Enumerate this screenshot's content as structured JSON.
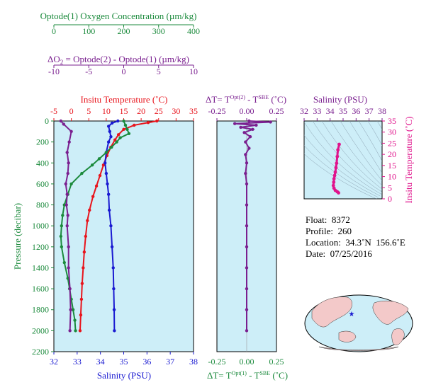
{
  "axes": {
    "oxygen": {
      "label": "Optode(1) Oxygen Concentration (µm/kg)",
      "ticks": [
        "0",
        "100",
        "200",
        "300",
        "400"
      ],
      "color": "#1b8a3c"
    },
    "delta_o2": {
      "label_prefix": "ΔO",
      "label_sub": "2",
      "label_rest": " = Optode(2) - Optode(1)    (µm/kg)",
      "ticks": [
        "-10",
        "-5",
        "0",
        "5",
        "10"
      ],
      "color": "#7a1f8f"
    },
    "temperature": {
      "label": "Insitu Temperature (˚C)",
      "ticks": [
        "-5",
        "0",
        "5",
        "10",
        "15",
        "20",
        "25",
        "30",
        "35"
      ],
      "color": "#e8141c"
    },
    "salinity": {
      "label": "Salinity (PSU)",
      "ticks": [
        "32",
        "33",
        "34",
        "35",
        "36",
        "37",
        "38"
      ],
      "color": "#1a1ad1"
    },
    "pressure": {
      "label": "Pressure (decibar)",
      "ticks": [
        "0",
        "200",
        "400",
        "600",
        "800",
        "1000",
        "1200",
        "1400",
        "1600",
        "1800",
        "2000",
        "2200"
      ],
      "color": "#1b8a3c"
    },
    "delta_t_top": {
      "label_a": "ΔT= T",
      "sup_a": "Opt(2)",
      "label_b": " - T",
      "sup_b": "SBE",
      "label_c": " (˚C)",
      "ticks": [
        "-0.25",
        "0.00",
        "0.25"
      ],
      "color": "#7a1f8f"
    },
    "delta_t_bottom": {
      "label_a": "ΔT= T",
      "sup_a": "Opt(1)",
      "label_b": " - T",
      "sup_b": "SBE",
      "label_c": " (˚C)",
      "ticks": [
        "-0.25",
        "0.00",
        "0.25"
      ],
      "color": "#1b8a3c"
    },
    "ts_salinity": {
      "label": "Salinity (PSU)",
      "ticks": [
        "32",
        "33",
        "34",
        "35",
        "36",
        "37",
        "38"
      ],
      "color": "#7a1f8f"
    },
    "ts_temperature": {
      "label": "Insitu Temperature (˚C)",
      "ticks": [
        "0",
        "5",
        "10",
        "15",
        "20",
        "25",
        "30",
        "35"
      ],
      "color": "#e0148c"
    }
  },
  "info": {
    "float": "Float:  8372",
    "profile": "Profile:  260",
    "location": "Location:  34.3˚N  156.6˚E",
    "date": "Date:  07/25/2016"
  },
  "chart_data": [
    {
      "type": "line",
      "pressure_range": [
        0,
        2200
      ],
      "series": [
        {
          "color": "#e8141c",
          "axis": "temperature",
          "xlim": [
            -5,
            35
          ],
          "points": [
            [
              24.5,
              0
            ],
            [
              22,
              15
            ],
            [
              18,
              40
            ],
            [
              15,
              80
            ],
            [
              13.5,
              130
            ],
            [
              12.5,
              180
            ],
            [
              11.3,
              250
            ],
            [
              10.2,
              330
            ],
            [
              9.2,
              420
            ],
            [
              8.2,
              520
            ],
            [
              7.2,
              620
            ],
            [
              6.2,
              720
            ],
            [
              5.2,
              850
            ],
            [
              4.6,
              950
            ],
            [
              4.1,
              1100
            ],
            [
              3.7,
              1250
            ],
            [
              3.4,
              1400
            ],
            [
              3.1,
              1550
            ],
            [
              2.9,
              1700
            ],
            [
              2.7,
              1850
            ],
            [
              2.5,
              2000
            ]
          ]
        },
        {
          "color": "#1a1ad1",
          "axis": "salinity",
          "xlim": [
            32,
            38
          ],
          "points": [
            [
              34.75,
              0
            ],
            [
              34.5,
              20
            ],
            [
              34.35,
              50
            ],
            [
              34.4,
              100
            ],
            [
              34.45,
              150
            ],
            [
              34.35,
              200
            ],
            [
              34.25,
              300
            ],
            [
              34.2,
              400
            ],
            [
              34.25,
              500
            ],
            [
              34.3,
              600
            ],
            [
              34.35,
              700
            ],
            [
              34.38,
              850
            ],
            [
              34.45,
              1000
            ],
            [
              34.5,
              1200
            ],
            [
              34.55,
              1400
            ],
            [
              34.57,
              1600
            ],
            [
              34.59,
              1800
            ],
            [
              34.6,
              2000
            ]
          ]
        },
        {
          "color": "#1b8a3c",
          "axis": "oxygen",
          "xlim": [
            0,
            400
          ],
          "points": [
            [
              200,
              0
            ],
            [
              205,
              40
            ],
            [
              210,
              80
            ],
            [
              215,
              120
            ],
            [
              190,
              160
            ],
            [
              180,
              200
            ],
            [
              165,
              250
            ],
            [
              150,
              300
            ],
            [
              130,
              360
            ],
            [
              110,
              420
            ],
            [
              80,
              500
            ],
            [
              50,
              600
            ],
            [
              40,
              700
            ],
            [
              30,
              800
            ],
            [
              25,
              900
            ],
            [
              22,
              1000
            ],
            [
              20,
              1100
            ],
            [
              22,
              1200
            ],
            [
              30,
              1350
            ],
            [
              40,
              1500
            ],
            [
              45,
              1600
            ],
            [
              50,
              1700
            ],
            [
              55,
              1800
            ],
            [
              60,
              1900
            ],
            [
              62,
              2000
            ]
          ]
        },
        {
          "color": "#7a1f8f",
          "axis": "delta_o2",
          "xlim": [
            -10,
            10
          ],
          "points": [
            [
              -9,
              0
            ],
            [
              -8.6,
              30
            ],
            [
              -7.5,
              100
            ],
            [
              -7.8,
              200
            ],
            [
              -8.1,
              300
            ],
            [
              -7.9,
              400
            ],
            [
              -8.0,
              500
            ],
            [
              -8.3,
              600
            ],
            [
              -8.1,
              700
            ],
            [
              -8.2,
              800
            ],
            [
              -8.0,
              900
            ],
            [
              -8.1,
              1000
            ],
            [
              -7.9,
              1200
            ],
            [
              -7.9,
              1400
            ],
            [
              -7.7,
              1600
            ],
            [
              -7.6,
              1800
            ],
            [
              -7.7,
              2000
            ]
          ]
        }
      ]
    },
    {
      "type": "line",
      "pressure_range": [
        0,
        2200
      ],
      "series": [
        {
          "color": "#7a1f8f",
          "axis": "delta_t_top",
          "xlim": [
            -0.25,
            0.25
          ],
          "points": [
            [
              0.02,
              0
            ],
            [
              0.2,
              10
            ],
            [
              -0.1,
              25
            ],
            [
              0.08,
              40
            ],
            [
              -0.05,
              60
            ],
            [
              0.05,
              80
            ],
            [
              -0.02,
              110
            ],
            [
              0.03,
              150
            ],
            [
              -0.01,
              200
            ],
            [
              0.02,
              260
            ],
            [
              -0.01,
              320
            ],
            [
              0.0,
              400
            ],
            [
              -0.01,
              500
            ],
            [
              0.0,
              600
            ],
            [
              0.0,
              800
            ],
            [
              0.0,
              1000
            ],
            [
              0.0,
              1200
            ],
            [
              0.0,
              1400
            ],
            [
              0.0,
              1600
            ],
            [
              0.0,
              1800
            ],
            [
              0.0,
              2000
            ]
          ]
        }
      ]
    },
    {
      "type": "scatter",
      "x_axis": "ts_salinity",
      "y_axis": "ts_temperature",
      "xlim": [
        32,
        38
      ],
      "ylim": [
        0,
        35
      ],
      "series": [
        {
          "color": "#e0148c",
          "points": [
            [
              34.7,
              24.5
            ],
            [
              34.6,
              22
            ],
            [
              34.55,
              19
            ],
            [
              34.5,
              16
            ],
            [
              34.45,
              14
            ],
            [
              34.4,
              12
            ],
            [
              34.35,
              10.5
            ],
            [
              34.3,
              9
            ],
            [
              34.28,
              7.5
            ],
            [
              34.25,
              6
            ],
            [
              34.3,
              4.8
            ],
            [
              34.4,
              3.8
            ],
            [
              34.55,
              3.2
            ],
            [
              34.65,
              2.7
            ]
          ]
        }
      ]
    }
  ]
}
